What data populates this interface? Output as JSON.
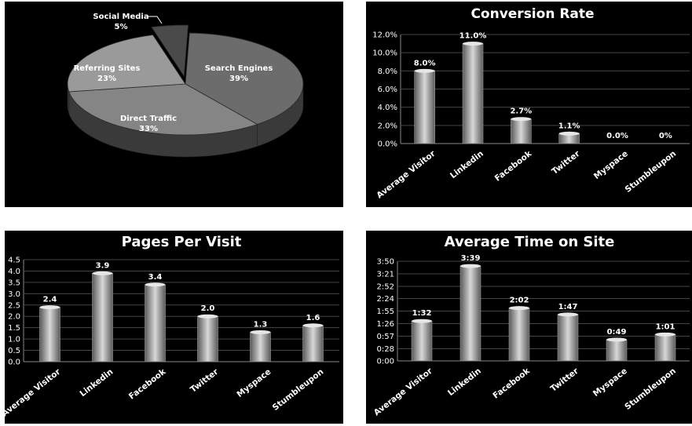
{
  "colors": {
    "background": "#000000",
    "bar_light": "#d8d8d8",
    "bar_dark": "#5a5a5a",
    "grid": "#444444",
    "text": "#ffffff",
    "pie_top": "#8c8c8c",
    "pie_side": "#3a3a3a"
  },
  "chart_data": [
    {
      "type": "pie",
      "title": "",
      "slices": [
        {
          "label": "Search Engines",
          "value": 39,
          "value_label": "39%"
        },
        {
          "label": "Direct Traffic",
          "value": 33,
          "value_label": "33%"
        },
        {
          "label": "Referring Sites",
          "value": 23,
          "value_label": "23%"
        },
        {
          "label": "Social Media",
          "value": 5,
          "value_label": "5%"
        }
      ]
    },
    {
      "type": "bar",
      "title": "Conversion Rate",
      "categories": [
        "Average Visitor",
        "Linkedin",
        "Facebook",
        "Twitter",
        "Myspace",
        "Stumbleupon"
      ],
      "values": [
        8.0,
        11.0,
        2.7,
        1.1,
        0.0,
        0.0
      ],
      "value_labels": [
        "8.0%",
        "11.0%",
        "2.7%",
        "1.1%",
        "0.0%",
        "0%"
      ],
      "ylim": [
        0,
        12
      ],
      "yticks": [
        0,
        2,
        4,
        6,
        8,
        10,
        12
      ],
      "ytick_labels": [
        "0.0%",
        "2.0%",
        "4.0%",
        "6.0%",
        "8.0%",
        "10.0%",
        "12.0%"
      ],
      "grid": true,
      "xlabel": "",
      "ylabel": ""
    },
    {
      "type": "bar",
      "title": "Pages Per Visit",
      "categories": [
        "Average Visitor",
        "Linkedin",
        "Facebook",
        "Twitter",
        "Myspace",
        "Stumbleupon"
      ],
      "values": [
        2.4,
        3.9,
        3.4,
        2.0,
        1.3,
        1.6
      ],
      "value_labels": [
        "2.4",
        "3.9",
        "3.4",
        "2.0",
        "1.3",
        "1.6"
      ],
      "ylim": [
        0,
        4.5
      ],
      "yticks": [
        0,
        0.5,
        1,
        1.5,
        2,
        2.5,
        3,
        3.5,
        4,
        4.5
      ],
      "ytick_labels": [
        "0.0",
        "0.5",
        "1.0",
        "1.5",
        "2.0",
        "2.5",
        "3.0",
        "3.5",
        "4.0",
        "4.5"
      ],
      "grid": true,
      "xlabel": "",
      "ylabel": ""
    },
    {
      "type": "bar",
      "title": "Average Time on Site",
      "categories": [
        "Average Visitor",
        "Linkedin",
        "Facebook",
        "Twitter",
        "Myspace",
        "Stumbleupon"
      ],
      "values": [
        "1:32",
        "3:39",
        "2:02",
        "1:47",
        "0:49",
        "1:01"
      ],
      "value_labels": [
        "1:32",
        "3:39",
        "2:02",
        "1:47",
        "0:49",
        "1:01"
      ],
      "ylim": [
        "0:00",
        "3:50"
      ],
      "yticks": [
        "0:00",
        "0:28",
        "0:57",
        "1:26",
        "1:55",
        "2:24",
        "2:52",
        "3:21",
        "3:50"
      ],
      "ytick_labels": [
        "0:00",
        "0:28",
        "0:57",
        "1:26",
        "1:55",
        "2:24",
        "2:52",
        "3:21",
        "3:50"
      ],
      "grid": true,
      "xlabel": "",
      "ylabel": ""
    }
  ]
}
